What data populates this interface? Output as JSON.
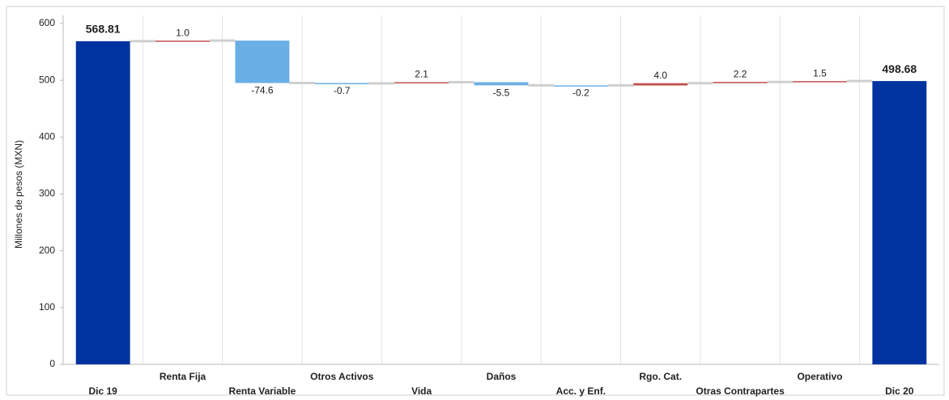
{
  "chart_data": {
    "type": "waterfall",
    "ylabel": "Millones de pesos (MXN)",
    "categories": [
      "Dic 19",
      "Renta Fija",
      "Renta Variable",
      "Otros Activos",
      "Vida",
      "Daños",
      "Acc. y Enf.",
      "Rgo. Cat.",
      "Otras Contrapartes",
      "Operativo",
      "Dic 20"
    ],
    "values": [
      568.81,
      1.0,
      -74.6,
      -0.7,
      2.1,
      -5.5,
      -0.2,
      4.0,
      2.2,
      1.5,
      498.68
    ],
    "value_labels": [
      "568.81",
      "1.0",
      "-74.6",
      "-0.7",
      "2.1",
      "-5.5",
      "-0.2",
      "4.0",
      "2.2",
      "1.5",
      "498.68"
    ],
    "colors": {
      "total": "#0033a0",
      "increase": "#c0504d",
      "decrease": "#6aaee6"
    },
    "ylim": [
      0,
      600
    ],
    "yticks": [
      0,
      100,
      200,
      300,
      400,
      500,
      600
    ],
    "grid": false
  }
}
